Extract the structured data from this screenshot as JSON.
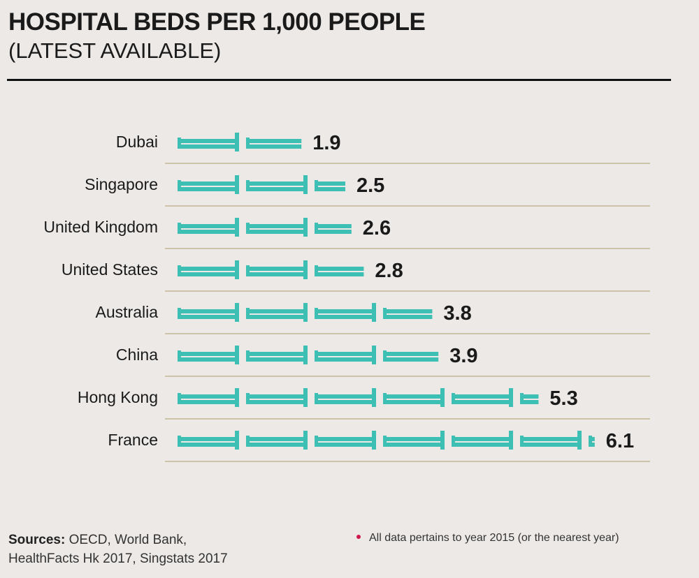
{
  "header": {
    "title": "HOSPITAL BEDS PER 1,000 PEOPLE",
    "subtitle": "(LATEST AVAILABLE)"
  },
  "chart_data": {
    "type": "bar",
    "title": "HOSPITAL BEDS PER 1,000 PEOPLE",
    "subtitle": "(LATEST AVAILABLE)",
    "categories": [
      "Dubai",
      "Singapore",
      "United Kingdom",
      "United States",
      "Australia",
      "China",
      "Hong Kong",
      "France"
    ],
    "values": [
      1.9,
      2.5,
      2.6,
      2.8,
      3.8,
      3.9,
      5.3,
      6.1
    ],
    "value_labels": [
      "1.9",
      "2.5",
      "2.6",
      "2.8",
      "3.8",
      "3.9",
      "5.3",
      "6.1"
    ],
    "bar_style": "pictograph-bed-icons",
    "bar_color": "#3dbfb3",
    "xlim": [
      0,
      7
    ]
  },
  "footer": {
    "sources_label": "Sources:",
    "sources_text": " OECD, World Bank,",
    "sources_line2": "HealthFacts Hk 2017, Singstats 2017",
    "note": "All data pertains to year 2015 (or the nearest year)",
    "note_dot_color": "#d0184a"
  }
}
